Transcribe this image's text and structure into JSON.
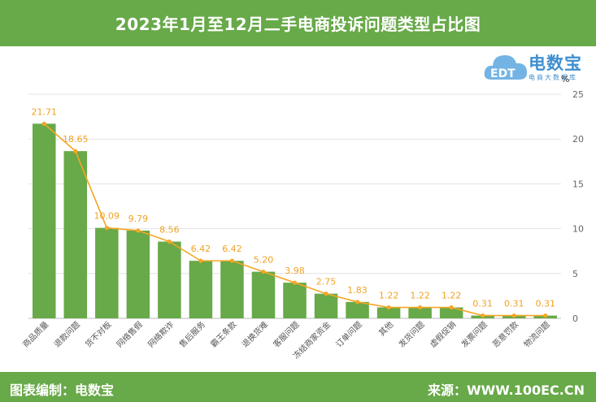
{
  "title": "2023年1月至12月二手电商投诉问题类型占比图",
  "footer": {
    "left": "图表编制：电数宝",
    "right": "来源：WWW.100EC.CN"
  },
  "logo": {
    "name": "电数宝",
    "sub": "电商大数据库",
    "badge": "EDT"
  },
  "colors": {
    "header": "#68a949",
    "bar": "#68a949",
    "line": "#f5a623",
    "label": "#f0a324"
  },
  "chart_data": {
    "type": "bar",
    "title": "2023年1月至12月二手电商投诉问题类型占比图",
    "unit": "%",
    "categories": [
      "商品质量",
      "退款问题",
      "货不对板",
      "网络售假",
      "网络欺诈",
      "售后服务",
      "霸王条款",
      "退换货难",
      "客服问题",
      "冻结商家资金",
      "订单问题",
      "其他",
      "发货问题",
      "虚假促销",
      "发票问题",
      "恶意罚款",
      "物流问题"
    ],
    "values": [
      21.71,
      18.65,
      10.09,
      9.79,
      8.56,
      6.42,
      6.42,
      5.2,
      3.98,
      2.75,
      1.83,
      1.22,
      1.22,
      1.22,
      0.31,
      0.31,
      0.31
    ],
    "value_labels": [
      "21.71",
      "18.65",
      "10.09",
      "9.79",
      "8.56",
      "6.42",
      "6.42",
      "5.20",
      "3.98",
      "2.75",
      "1.83",
      "1.22",
      "1.22",
      "1.22",
      "0.31",
      "0.31",
      "0.31"
    ],
    "overlay": "line",
    "ylim": [
      0,
      25
    ],
    "yticks": [
      0,
      5,
      10,
      15,
      20,
      25
    ],
    "y_axis_side": "right",
    "grid": true
  }
}
